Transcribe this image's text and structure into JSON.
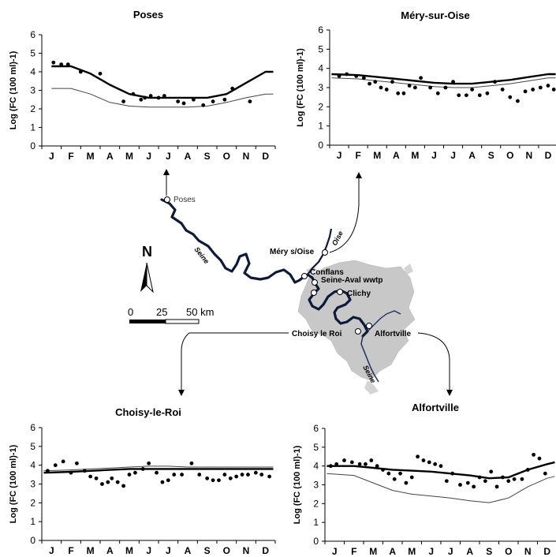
{
  "chart_data": [
    {
      "type": "line",
      "title": "Poses",
      "ylabel": "Log (FC (100 ml)-1)",
      "xlabel": "",
      "ylim": [
        0,
        6
      ],
      "yticks": [
        "0",
        "1",
        "2",
        "3",
        "4",
        "5",
        "6"
      ],
      "categories": [
        "J",
        "F",
        "M",
        "A",
        "M",
        "J",
        "J",
        "A",
        "S",
        "O",
        "N",
        "D"
      ],
      "series": [
        {
          "name": "",
          "style": "thick",
          "x": [
            0,
            1,
            2,
            3,
            4,
            5,
            6,
            7,
            8,
            9,
            10,
            11,
            11.4
          ],
          "values": [
            4.3,
            4.3,
            3.9,
            3.3,
            2.8,
            2.6,
            2.6,
            2.6,
            2.6,
            2.8,
            3.4,
            4.0,
            4.0
          ]
        },
        {
          "name": "",
          "style": "thin",
          "x": [
            0,
            1,
            2,
            3,
            4,
            5,
            6,
            7,
            8,
            9,
            10,
            11,
            11.4
          ],
          "values": [
            3.1,
            3.1,
            2.8,
            2.35,
            2.15,
            2.1,
            2.1,
            2.1,
            2.15,
            2.35,
            2.6,
            2.8,
            2.8
          ]
        },
        {
          "name": "",
          "style": "points",
          "x": [
            0.1,
            0.5,
            0.85,
            1.5,
            2.5,
            3.7,
            4.2,
            4.6,
            4.8,
            5.1,
            5.5,
            5.8,
            6.5,
            6.8,
            7.3,
            7.8,
            8.3,
            8.9,
            9.3,
            10.2
          ],
          "values": [
            4.5,
            4.4,
            4.4,
            4.0,
            3.9,
            2.4,
            2.8,
            2.5,
            2.6,
            2.7,
            2.6,
            2.7,
            2.4,
            2.3,
            2.5,
            2.2,
            2.4,
            2.5,
            3.1,
            2.4
          ]
        }
      ]
    },
    {
      "type": "line",
      "title": "Méry-sur-Oise",
      "ylabel": "Log (FC (100 ml)-1)",
      "xlabel": "",
      "ylim": [
        0,
        6
      ],
      "yticks": [
        "0",
        "1",
        "2",
        "3",
        "4",
        "5",
        "6"
      ],
      "categories": [
        "J",
        "F",
        "M",
        "A",
        "M",
        "J",
        "J",
        "A",
        "S",
        "O",
        "N",
        "D"
      ],
      "series": [
        {
          "name": "",
          "style": "thick",
          "x": [
            -0.4,
            1,
            2,
            3,
            4,
            5,
            6,
            7,
            8,
            9,
            10,
            11,
            11.4
          ],
          "values": [
            3.7,
            3.65,
            3.55,
            3.45,
            3.35,
            3.25,
            3.2,
            3.2,
            3.3,
            3.4,
            3.55,
            3.7,
            3.7
          ]
        },
        {
          "name": "",
          "style": "thin",
          "x": [
            -0.4,
            1,
            2,
            3,
            4,
            5,
            6,
            7,
            8,
            9,
            10,
            11,
            11.4
          ],
          "values": [
            3.5,
            3.45,
            3.35,
            3.25,
            3.15,
            3.05,
            3.0,
            3.0,
            3.1,
            3.2,
            3.35,
            3.5,
            3.5
          ]
        },
        {
          "name": "",
          "style": "points",
          "x": [
            0,
            0.4,
            0.9,
            1.3,
            1.6,
            1.9,
            2.2,
            2.5,
            2.8,
            3.1,
            3.4,
            3.7,
            4.0,
            4.3,
            4.8,
            5.2,
            5.6,
            6.0,
            6.3,
            6.7,
            7.0,
            7.4,
            7.8,
            8.2,
            8.6,
            9.0,
            9.4,
            9.8,
            10.2,
            10.6,
            11.0,
            11.3
          ],
          "values": [
            3.6,
            3.7,
            3.6,
            3.5,
            3.2,
            3.3,
            3.0,
            2.9,
            3.3,
            2.7,
            2.7,
            3.1,
            3.0,
            3.5,
            3.0,
            2.7,
            3.0,
            3.3,
            2.6,
            2.6,
            2.9,
            2.6,
            2.7,
            3.3,
            2.9,
            2.5,
            2.3,
            2.8,
            2.9,
            3.0,
            3.1,
            2.9
          ]
        }
      ]
    },
    {
      "type": "line",
      "title": "Choisy-le-Roi",
      "ylabel": "Log (FC (100 ml)-1)",
      "xlabel": "",
      "ylim": [
        0,
        6
      ],
      "yticks": [
        "0",
        "1",
        "2",
        "3",
        "4",
        "5",
        "6"
      ],
      "categories": [
        "J",
        "F",
        "M",
        "A",
        "M",
        "J",
        "J",
        "A",
        "S",
        "O",
        "N",
        "D"
      ],
      "series": [
        {
          "name": "",
          "style": "thick",
          "x": [
            -0.4,
            1,
            2,
            3,
            4,
            5,
            6,
            7,
            8,
            9,
            10,
            11,
            11.4
          ],
          "values": [
            3.6,
            3.65,
            3.7,
            3.75,
            3.8,
            3.8,
            3.8,
            3.8,
            3.8,
            3.8,
            3.8,
            3.8,
            3.8
          ]
        },
        {
          "name": "",
          "style": "thin",
          "x": [
            -0.4,
            1,
            2,
            3,
            4,
            5,
            6,
            7,
            8,
            9,
            10,
            11,
            11.4
          ],
          "values": [
            3.7,
            3.75,
            3.8,
            3.85,
            3.9,
            3.95,
            3.95,
            3.9,
            3.9,
            3.9,
            3.9,
            3.9,
            3.9
          ]
        },
        {
          "name": "",
          "style": "points",
          "x": [
            -0.2,
            0.2,
            0.6,
            1.0,
            1.3,
            1.7,
            2.0,
            2.3,
            2.6,
            2.9,
            3.1,
            3.4,
            3.7,
            4.0,
            4.3,
            4.7,
            5.0,
            5.4,
            5.7,
            6.0,
            6.3,
            6.7,
            7.2,
            7.6,
            8.0,
            8.3,
            8.6,
            8.9,
            9.2,
            9.5,
            9.8,
            10.1,
            10.5,
            10.8,
            11.2
          ],
          "values": [
            3.7,
            4.0,
            4.2,
            3.6,
            4.1,
            3.7,
            3.4,
            3.3,
            3.0,
            3.1,
            3.3,
            3.1,
            2.9,
            3.5,
            3.6,
            3.8,
            4.1,
            3.6,
            3.1,
            3.2,
            3.5,
            3.5,
            4.1,
            3.5,
            3.3,
            3.2,
            3.2,
            3.5,
            3.3,
            3.4,
            3.5,
            3.5,
            3.6,
            3.5,
            3.4
          ]
        }
      ]
    },
    {
      "type": "line",
      "title": "Alfortville",
      "ylabel": "Log (FC (100 ml)-1)",
      "xlabel": "",
      "ylim": [
        0,
        6
      ],
      "yticks": [
        "0",
        "1",
        "2",
        "3",
        "4",
        "5",
        "6"
      ],
      "categories": [
        "J",
        "F",
        "M",
        "A",
        "M",
        "J",
        "J",
        "A",
        "S",
        "O",
        "N",
        "D"
      ],
      "series": [
        {
          "name": "",
          "style": "thick",
          "x": [
            -0.4,
            1,
            2,
            3,
            4,
            5,
            6,
            7,
            8,
            9,
            10,
            11,
            11.4
          ],
          "values": [
            4.0,
            4.0,
            3.9,
            3.8,
            3.75,
            3.7,
            3.6,
            3.5,
            3.35,
            3.4,
            3.8,
            4.1,
            4.2
          ]
        },
        {
          "name": "",
          "style": "thin",
          "x": [
            -0.4,
            1,
            2,
            3,
            4,
            5,
            6,
            7,
            8,
            9,
            10,
            11,
            11.4
          ],
          "values": [
            3.6,
            3.5,
            3.1,
            2.7,
            2.5,
            2.4,
            2.3,
            2.15,
            2.05,
            2.3,
            2.9,
            3.35,
            3.45
          ]
        },
        {
          "name": "",
          "style": "points",
          "x": [
            -0.2,
            0.1,
            0.5,
            0.9,
            1.3,
            1.6,
            1.9,
            2.2,
            2.5,
            2.8,
            3.1,
            3.4,
            3.7,
            4.0,
            4.3,
            4.6,
            4.9,
            5.2,
            5.5,
            5.8,
            6.1,
            6.5,
            6.9,
            7.2,
            7.5,
            7.8,
            8.1,
            8.4,
            8.7,
            9.0,
            9.3,
            9.7,
            10.0,
            10.3,
            10.6,
            10.9
          ],
          "values": [
            4.0,
            4.1,
            4.3,
            4.2,
            4.1,
            4.1,
            4.3,
            4.0,
            3.8,
            3.6,
            3.3,
            3.6,
            3.1,
            3.4,
            4.5,
            4.3,
            4.2,
            4.1,
            4.0,
            3.2,
            3.6,
            3.0,
            3.1,
            2.9,
            3.4,
            3.2,
            3.7,
            2.9,
            3.4,
            3.2,
            3.3,
            3.3,
            3.8,
            4.6,
            4.4,
            3.6
          ]
        }
      ]
    }
  ],
  "map": {
    "north_label": "N",
    "scale_labels": [
      "0",
      "25",
      "50 km"
    ],
    "sites": [
      "Poses",
      "Méry s/Oise",
      "Conflans",
      "Seine-Aval wwtp",
      "Clichy",
      "Choisy le Roi",
      "Alfortville"
    ],
    "river_labels": [
      "Seine",
      "Oise",
      "Seine"
    ]
  }
}
